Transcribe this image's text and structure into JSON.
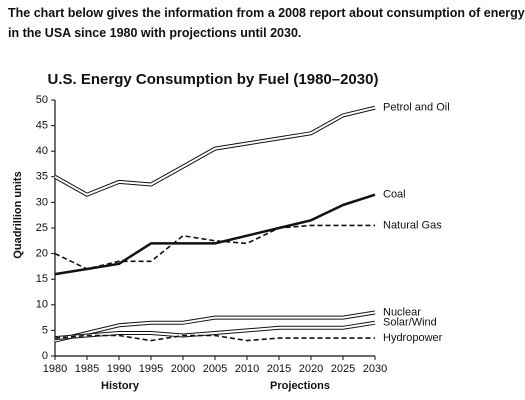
{
  "header": [
    "The chart below gives the information from a 2008 report about consumption of energy",
    "in the USA since 1980 with projections until 2030."
  ],
  "chart_data": {
    "type": "line",
    "title": "U.S. Energy Consumption by Fuel (1980–2030)",
    "y_label": "Quadrillion units",
    "annotations": [
      "History",
      "Projections"
    ],
    "x": [
      1980,
      1985,
      1990,
      1995,
      2000,
      2005,
      2010,
      2015,
      2020,
      2025,
      2030
    ],
    "xlim": [
      1980,
      2030
    ],
    "xticks": [
      1980,
      1985,
      1990,
      1995,
      2000,
      2005,
      2010,
      2015,
      2020,
      2025,
      2030
    ],
    "ylim": [
      0,
      50
    ],
    "yticks": [
      0,
      5,
      10,
      15,
      20,
      25,
      30,
      35,
      40,
      45,
      50
    ],
    "grid": false,
    "series": [
      {
        "name": "Petrol and Oil",
        "color": "#111111",
        "style": "double",
        "values": [
          35,
          31.5,
          34,
          33.5,
          37,
          40.5,
          41.5,
          42.5,
          43.5,
          47,
          48.5
        ]
      },
      {
        "name": "Coal",
        "color": "#111111",
        "style": "thick",
        "values": [
          16,
          17,
          18,
          22,
          22,
          22,
          23.5,
          25,
          26.5,
          29.5,
          31.5
        ]
      },
      {
        "name": "Natural Gas",
        "color": "#111111",
        "style": "dashed",
        "values": [
          20,
          17,
          18.5,
          18.5,
          23.5,
          22.5,
          22,
          25,
          25.5,
          25.5,
          25.5
        ]
      },
      {
        "name": "Nuclear",
        "color": "#111111",
        "style": "double",
        "values": [
          3,
          4.5,
          6,
          6.5,
          6.5,
          7.5,
          7.5,
          7.5,
          7.5,
          7.5,
          8.5
        ]
      },
      {
        "name": "Solar/Wind",
        "color": "#111111",
        "style": "double",
        "values": [
          3.5,
          4,
          4.5,
          4.5,
          4,
          4.5,
          5,
          5.5,
          5.5,
          5.5,
          6.5
        ]
      },
      {
        "name": "Hydropower",
        "color": "#111111",
        "style": "dashed",
        "values": [
          3.5,
          4,
          4,
          3,
          4,
          4,
          3,
          3.5,
          3.5,
          3.5,
          3.5
        ]
      }
    ]
  }
}
